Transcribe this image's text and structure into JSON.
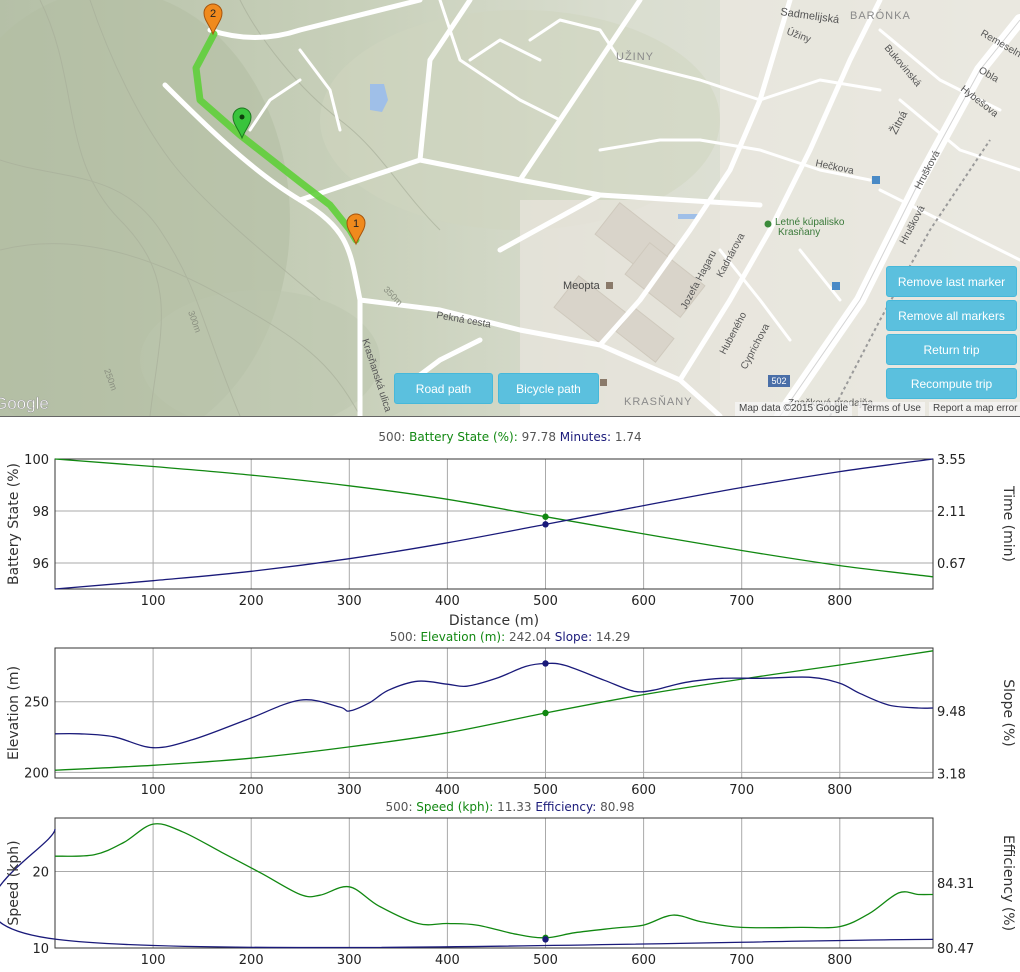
{
  "map": {
    "place_labels": {
      "sadmelijska": "Sadmelijská",
      "baronka": "BARÓNKA",
      "remeselnicka": "Remeselnícka",
      "uziny_area": "UŽINY",
      "uziny_street": "Úžiny",
      "bukovinska": "Bukovinská",
      "obla": "Obla",
      "hybesova": "Hybešova",
      "zitna": "Žitná",
      "heckova": "Hečkova",
      "hruskova1": "Hrušková",
      "hruskova2": "Hrušková",
      "kupalisko1": "Letné kúpalisko",
      "kupalisko2": "Krasňany",
      "meopta": "Meopta",
      "jozefa": "Jozefa Hagaru",
      "kadnarova": "Kadnárova",
      "hubeneho": "Hubeného",
      "cyprichova": "Cyprichova",
      "pekna": "Pekná cesta",
      "krasnanska": "Krasňanská ulica",
      "krasnany": "KRASŇANY",
      "zdarkova": "Značková predajňa",
      "road502": "502",
      "contour300": "300m",
      "contour350": "350m",
      "contour250": "250m",
      "google": "Google"
    },
    "markers": [
      "2",
      "1"
    ],
    "buttons": {
      "remove_last": "Remove last marker",
      "remove_all": "Remove all markers",
      "return_trip": "Return trip",
      "recompute_trip": "Recompute trip",
      "road_path": "Road path",
      "bicycle_path": "Bicycle path"
    },
    "attribution": {
      "map_data": "Map data ©2015 Google",
      "terms": "Terms of Use",
      "report": "Report a map error"
    }
  },
  "colors": {
    "green_series": "#118811",
    "blue_series": "#1a1a7a",
    "route": "#5fcf3a",
    "marker_orange": "#f08a1d",
    "marker_green": "#39c43c",
    "button": "#5bc0de"
  },
  "chart_data": [
    {
      "type": "line",
      "title_parts": {
        "x": "500",
        "s1": "Battery State (%)",
        "v1": "97.78",
        "s2": "Minutes",
        "v2": "1.74"
      },
      "xlabel": "Distance (m)",
      "ylabel": "Battery State (%)",
      "y2label": "Time (min)",
      "x_ticks": [
        100,
        200,
        300,
        400,
        500,
        600,
        700,
        800
      ],
      "xlim": [
        0,
        895
      ],
      "ylim": [
        95,
        100
      ],
      "y_ticks": [
        96,
        98,
        100
      ],
      "y2lim": [
        -0.05,
        3.55
      ],
      "y2_ticks": [
        "0.67",
        "2.11",
        "3.55"
      ],
      "series": [
        {
          "name": "Battery State (%)",
          "axis": "left",
          "x": [
            0,
            100,
            200,
            300,
            400,
            500,
            600,
            700,
            800,
            895
          ],
          "y": [
            100,
            99.71,
            99.38,
            98.97,
            98.45,
            97.78,
            97.12,
            96.48,
            95.9,
            95.47
          ]
        },
        {
          "name": "Minutes",
          "axis": "right",
          "x": [
            0,
            100,
            200,
            300,
            400,
            500,
            600,
            700,
            800,
            895
          ],
          "y": [
            -0.05,
            0.18,
            0.44,
            0.79,
            1.23,
            1.74,
            2.26,
            2.76,
            3.2,
            3.55
          ]
        }
      ],
      "marker_x": 500
    },
    {
      "type": "line",
      "title_parts": {
        "x": "500",
        "s1": "Elevation (m)",
        "v1": "242.04",
        "s2": "Slope",
        "v2": "14.29"
      },
      "ylabel": "Elevation (m)",
      "y2label": "Slope (%)",
      "x_ticks": [
        100,
        200,
        300,
        400,
        500,
        600,
        700,
        800
      ],
      "xlim": [
        0,
        895
      ],
      "ylim": [
        196,
        288
      ],
      "y_ticks": [
        200,
        250
      ],
      "y2lim": [
        2.75,
        15.85
      ],
      "y2_ticks": [
        "3.18",
        "9.48"
      ],
      "series": [
        {
          "name": "Elevation (m)",
          "axis": "left",
          "x": [
            0,
            100,
            200,
            300,
            400,
            500,
            600,
            700,
            800,
            895
          ],
          "y": [
            201.5,
            205,
            210,
            218,
            228,
            242,
            255,
            266,
            276,
            286
          ]
        },
        {
          "name": "Slope",
          "axis": "right",
          "x": [
            0,
            25,
            60,
            100,
            140,
            195,
            250,
            290,
            300,
            320,
            340,
            370,
            400,
            420,
            450,
            480,
            500,
            520,
            560,
            590,
            610,
            630,
            650,
            680,
            720,
            770,
            800,
            820,
            850,
            880,
            895
          ],
          "y": [
            7.2,
            7.2,
            6.9,
            5.8,
            6.6,
            8.6,
            10.6,
            9.9,
            9.5,
            10.3,
            11.6,
            12.5,
            12.2,
            12.0,
            12.8,
            14.0,
            14.29,
            14.1,
            12.6,
            11.5,
            11.6,
            12.1,
            12.5,
            12.8,
            12.8,
            12.9,
            12.3,
            11.3,
            10.1,
            9.8,
            9.8
          ]
        }
      ],
      "marker_x": 500
    },
    {
      "type": "line",
      "title_parts": {
        "x": "500",
        "s1": "Speed (kph)",
        "v1": "11.33",
        "s2": "Efficiency",
        "v2": "80.98"
      },
      "ylabel": "Speed (kph)",
      "y2label": "Efficiency (%)",
      "x_ticks": [
        100,
        200,
        300,
        400,
        500,
        600,
        700,
        800
      ],
      "xlim": [
        0,
        895
      ],
      "ylim": [
        10,
        27
      ],
      "y_ticks": [
        10,
        20
      ],
      "y2lim": [
        80.47,
        88.15
      ],
      "y2_ticks": [
        "80.47",
        "84.31"
      ],
      "series": [
        {
          "name": "Speed (kph)",
          "axis": "left",
          "x": [
            0,
            40,
            70,
            100,
            130,
            170,
            210,
            250,
            270,
            300,
            330,
            370,
            400,
            430,
            470,
            500,
            530,
            570,
            600,
            630,
            660,
            700,
            760,
            800,
            830,
            860,
            880,
            895
          ],
          "y": [
            22,
            22.2,
            23.8,
            26.2,
            25.2,
            22.5,
            19.8,
            17.0,
            16.9,
            18.0,
            15.5,
            13.2,
            13.2,
            13.0,
            11.8,
            11.33,
            12.0,
            12.6,
            13.0,
            14.3,
            13.4,
            12.7,
            12.7,
            12.8,
            14.5,
            17.2,
            17.0,
            17.0
          ]
        },
        {
          "name": "Efficiency",
          "axis": "right",
          "x": [
            0,
            2,
            895
          ],
          "y": [
            87.5,
            80.98,
            80.98
          ]
        }
      ],
      "marker_x": 500
    }
  ]
}
